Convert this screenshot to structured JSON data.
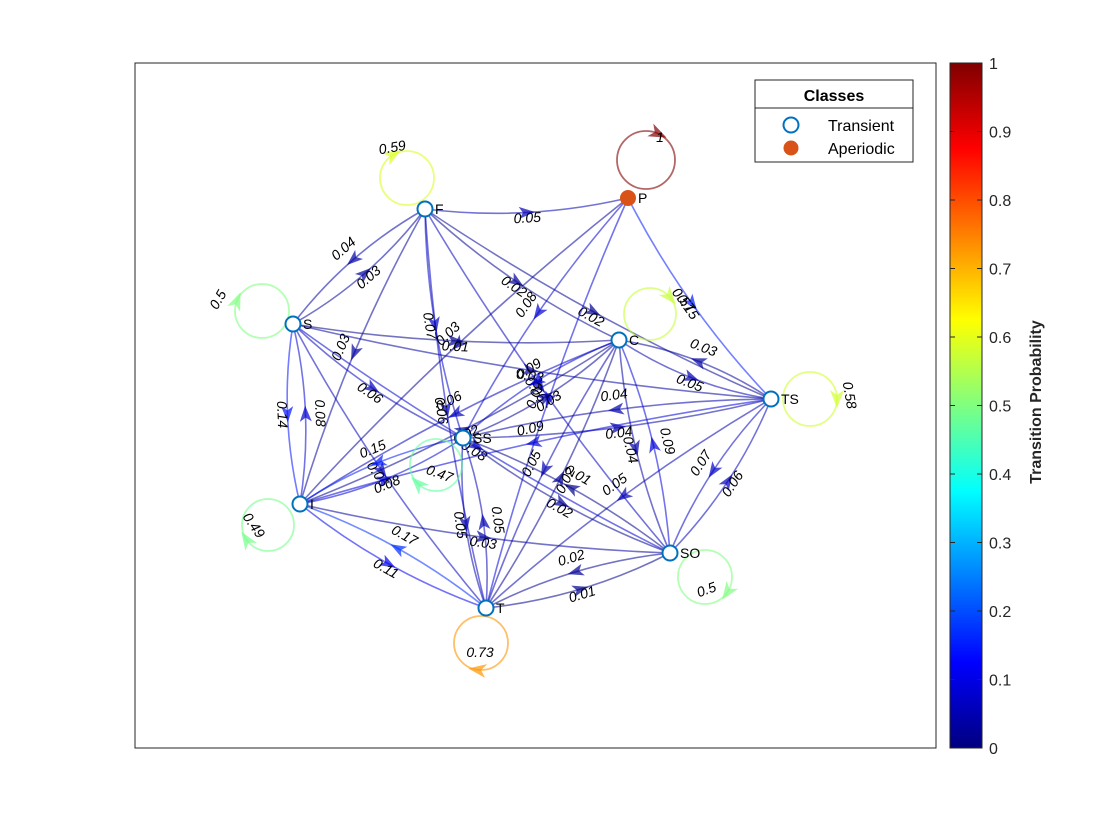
{
  "nodes": [
    {
      "id": "F",
      "label": "F",
      "class": "Transient"
    },
    {
      "id": "P",
      "label": "P",
      "class": "Aperiodic"
    },
    {
      "id": "S",
      "label": "S",
      "class": "Transient"
    },
    {
      "id": "C",
      "label": "C",
      "class": "Transient"
    },
    {
      "id": "TS",
      "label": "TS",
      "class": "Transient"
    },
    {
      "id": "SS",
      "label": "SS",
      "class": "Transient"
    },
    {
      "id": "I",
      "label": "I",
      "class": "Transient"
    },
    {
      "id": "SO",
      "label": "SO",
      "class": "Transient"
    },
    {
      "id": "T",
      "label": "T",
      "class": "Transient"
    }
  ],
  "self_loops": [
    {
      "node": "F",
      "p": 0.59,
      "label": "0.59"
    },
    {
      "node": "P",
      "p": 1,
      "label": "1"
    },
    {
      "node": "S",
      "p": 0.5,
      "label": "0.5"
    },
    {
      "node": "C",
      "p": 0.57,
      "label": "0.57"
    },
    {
      "node": "TS",
      "p": 0.58,
      "label": "0.58"
    },
    {
      "node": "SS",
      "p": 0.47,
      "label": "0.47"
    },
    {
      "node": "I",
      "p": 0.49,
      "label": "0.49"
    },
    {
      "node": "SO",
      "p": 0.5,
      "label": "0.5"
    },
    {
      "node": "T",
      "p": 0.73,
      "label": "0.73"
    }
  ],
  "edges": [
    {
      "from": "F",
      "to": "P",
      "p": 0.05,
      "label": "0.05"
    },
    {
      "from": "F",
      "to": "S",
      "p": 0.04,
      "label": "0.04"
    },
    {
      "from": "S",
      "to": "F",
      "p": 0.03,
      "label": "0.03"
    },
    {
      "from": "F",
      "to": "SS",
      "p": 0.07,
      "label": "0.07"
    },
    {
      "from": "F",
      "to": "C",
      "p": 0.02,
      "label": "0.02"
    },
    {
      "from": "F",
      "to": "TS",
      "p": 0.02,
      "label": "0.02"
    },
    {
      "from": "F",
      "to": "SO",
      "p": 0.06,
      "label": "0.06"
    },
    {
      "from": "F",
      "to": "T",
      "p": 0.06,
      "label": "0.06"
    },
    {
      "from": "F",
      "to": "I",
      "p": 0.03,
      "label": "0.03"
    },
    {
      "from": "P",
      "to": "TS",
      "p": 0.15,
      "label": "0.15"
    },
    {
      "from": "P",
      "to": "SS",
      "p": 0.08,
      "label": "0.08"
    },
    {
      "from": "P",
      "to": "I",
      "p": 0.03,
      "label": "0.03"
    },
    {
      "from": "P",
      "to": "T",
      "p": 0.09,
      "label": "0.09"
    },
    {
      "from": "S",
      "to": "C",
      "p": 0.01,
      "label": "0.01"
    },
    {
      "from": "S",
      "to": "TS",
      "p": 0.03,
      "label": "0.03"
    },
    {
      "from": "S",
      "to": "SS",
      "p": 0.06,
      "label": "0.06"
    },
    {
      "from": "S",
      "to": "I",
      "p": 0.14,
      "label": "0.14"
    },
    {
      "from": "I",
      "to": "S",
      "p": 0.08,
      "label": "0.08"
    },
    {
      "from": "S",
      "to": "T",
      "p": 0.06,
      "label": "0.06"
    },
    {
      "from": "S",
      "to": "SO",
      "p": 0.08,
      "label": "0.08"
    },
    {
      "from": "C",
      "to": "TS",
      "p": 0.05,
      "label": "0.05"
    },
    {
      "from": "TS",
      "to": "C",
      "p": 0.03,
      "label": "0.03"
    },
    {
      "from": "C",
      "to": "SS",
      "p": 0.09,
      "label": "0.09"
    },
    {
      "from": "C",
      "to": "SO",
      "p": 0.04,
      "label": "0.04"
    },
    {
      "from": "C",
      "to": "T",
      "p": 0.05,
      "label": "0.05"
    },
    {
      "from": "C",
      "to": "I",
      "p": 0.06,
      "label": "0.06"
    },
    {
      "from": "TS",
      "to": "SS",
      "p": 0.04,
      "label": "0.04"
    },
    {
      "from": "SS",
      "to": "TS",
      "p": 0.04,
      "label": "0.04"
    },
    {
      "from": "TS",
      "to": "SO",
      "p": 0.07,
      "label": "0.07"
    },
    {
      "from": "SO",
      "to": "TS",
      "p": 0.06,
      "label": "0.06"
    },
    {
      "from": "TS",
      "to": "T",
      "p": 0.05,
      "label": "0.05"
    },
    {
      "from": "TS",
      "to": "I",
      "p": 0.09,
      "label": "0.09"
    },
    {
      "from": "SS",
      "to": "I",
      "p": 0.15,
      "label": "0.15"
    },
    {
      "from": "I",
      "to": "SS",
      "p": 0.08,
      "label": "0.08"
    },
    {
      "from": "SS",
      "to": "SO",
      "p": 0.02,
      "label": "0.02"
    },
    {
      "from": "SS",
      "to": "T",
      "p": 0.05,
      "label": "0.05"
    },
    {
      "from": "SS",
      "to": "C",
      "p": 0.03,
      "label": "0.03"
    },
    {
      "from": "I",
      "to": "T",
      "p": 0.11,
      "label": "0.11"
    },
    {
      "from": "T",
      "to": "I",
      "p": 0.17,
      "label": "0.17"
    },
    {
      "from": "SO",
      "to": "T",
      "p": 0.02,
      "label": "0.02"
    },
    {
      "from": "T",
      "to": "SO",
      "p": 0.01,
      "label": "0.01"
    },
    {
      "from": "SO",
      "to": "SS",
      "p": 0.01,
      "label": "0.01"
    },
    {
      "from": "I",
      "to": "SO",
      "p": 0.03,
      "label": "0.03"
    },
    {
      "from": "T",
      "to": "SS",
      "p": 0.05,
      "label": "0.05"
    },
    {
      "from": "SO",
      "to": "C",
      "p": 0.09,
      "label": "0.09"
    },
    {
      "from": "T",
      "to": "C",
      "p": 0.02,
      "label": "0.02"
    },
    {
      "from": "I",
      "to": "C",
      "p": 0.02,
      "label": "0.02"
    }
  ],
  "legend": {
    "title": "Classes",
    "items": [
      {
        "label": "Transient",
        "marker": "open-circle",
        "color": "#0072BD"
      },
      {
        "label": "Aperiodic",
        "marker": "filled-circle",
        "color": "#D95319"
      }
    ]
  },
  "colorbar": {
    "label": "Transition Probability",
    "colormap": "jet",
    "ticks": [
      "0",
      "0.1",
      "0.2",
      "0.3",
      "0.4",
      "0.5",
      "0.6",
      "0.7",
      "0.8",
      "0.9",
      "1"
    ]
  },
  "colors": {
    "transient": "#0072BD",
    "aperiodic": "#D95319"
  }
}
